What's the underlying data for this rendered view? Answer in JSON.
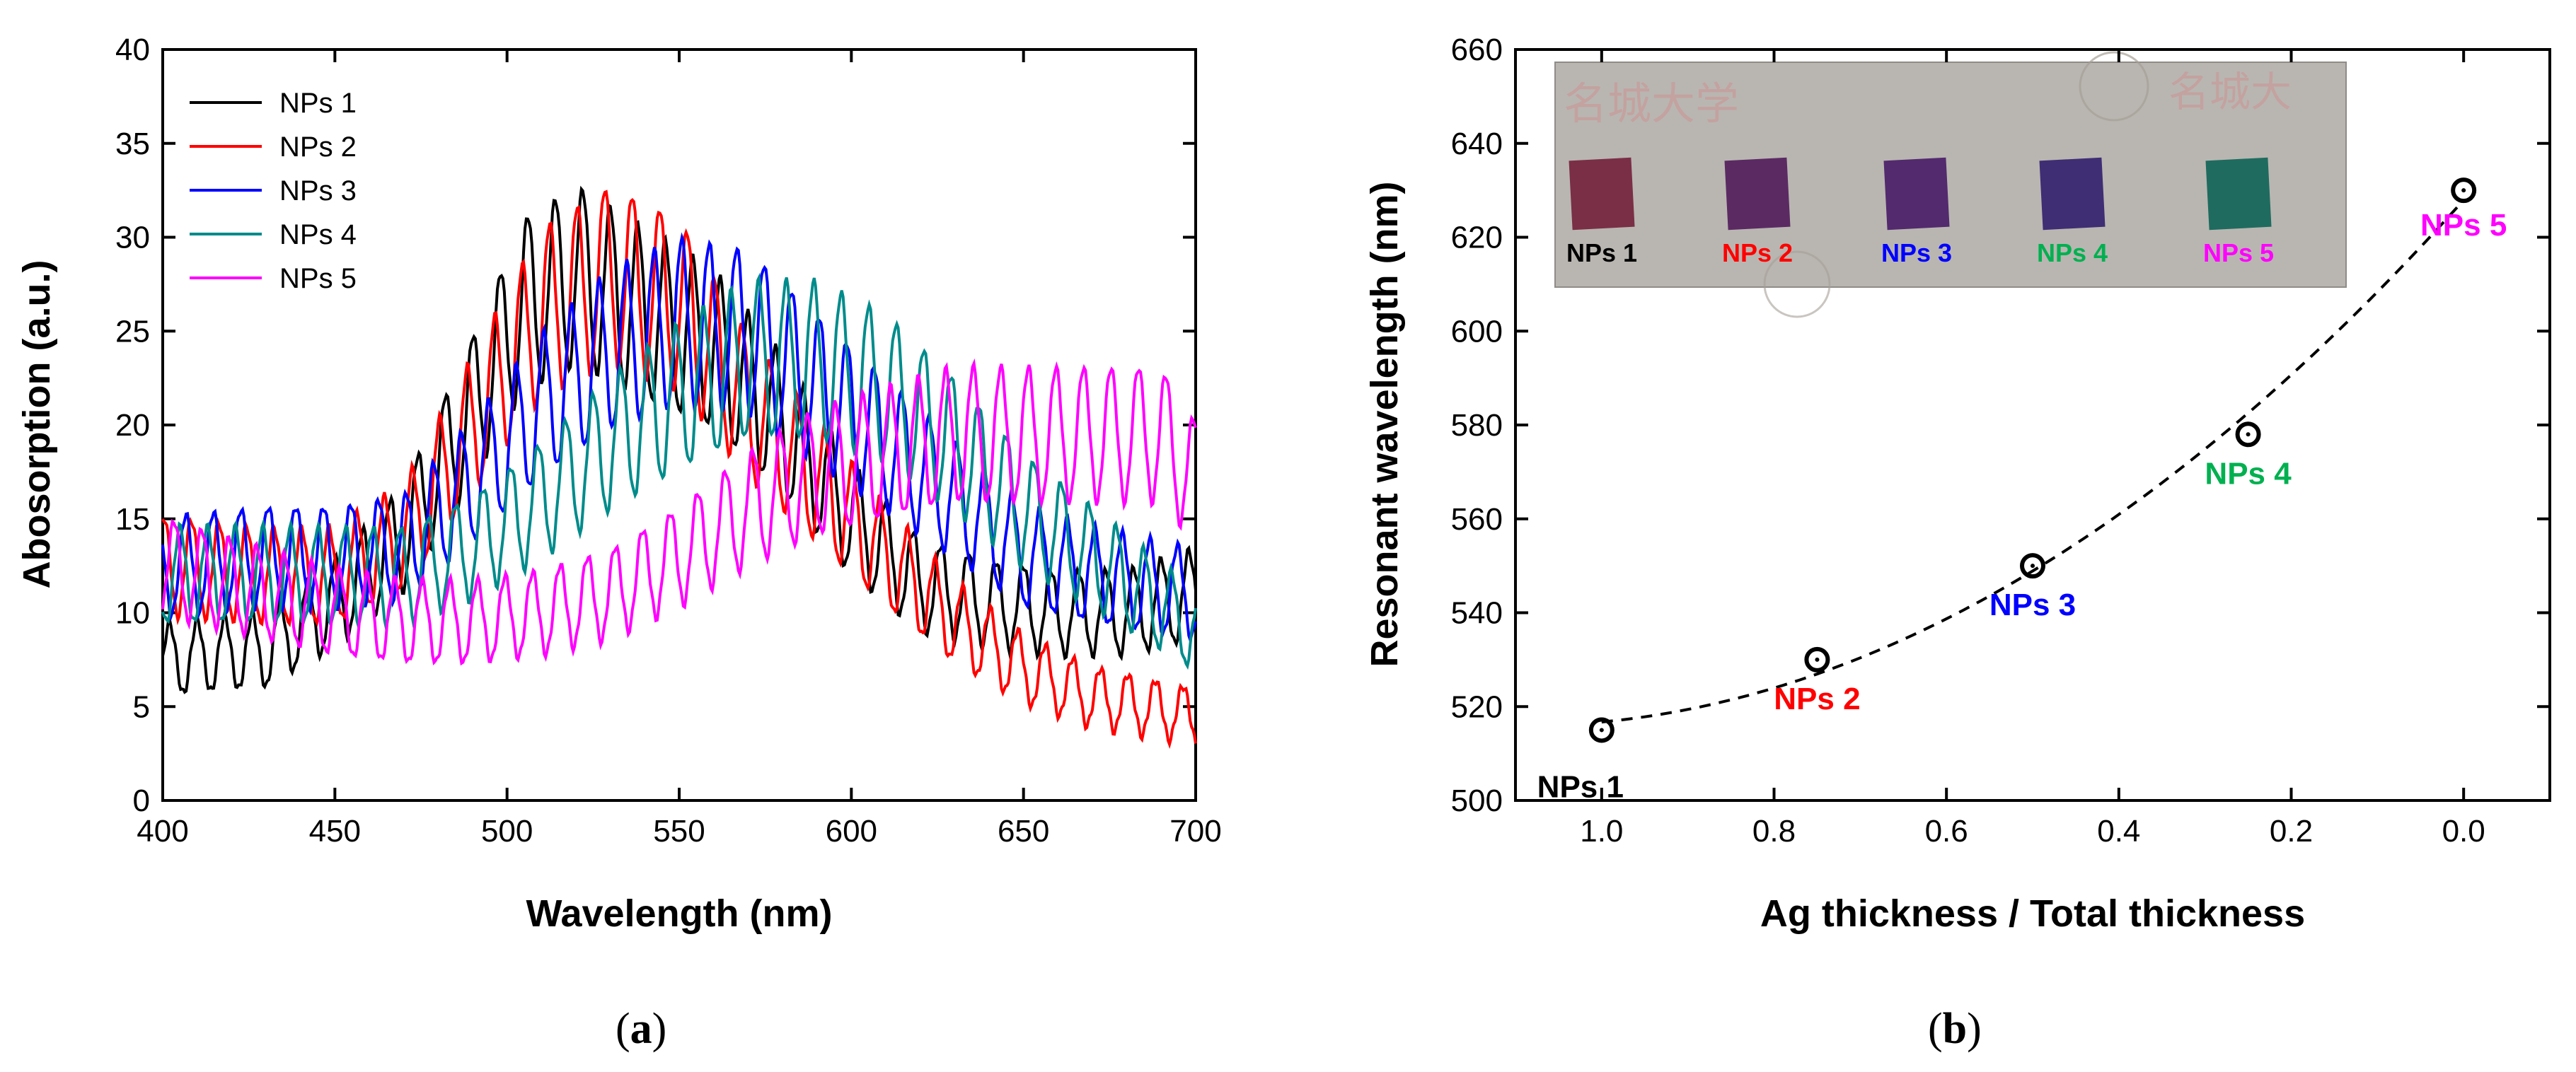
{
  "colors": {
    "NPs 1": "#000000",
    "NPs 2": "#ff0000",
    "NPs 3": "#0000ff",
    "NPs 4": "#008b8b",
    "NPs 5": "#ff00ff",
    "inset_label_NPs4": "#00b050"
  },
  "chart_data": [
    {
      "panel": "a",
      "type": "line",
      "xlabel": "Wavelength (nm)",
      "ylabel": "Abosorption (a.u.)",
      "xlim": [
        400,
        700
      ],
      "ylim": [
        0,
        40
      ],
      "xticks": [
        400,
        450,
        500,
        550,
        600,
        650,
        700
      ],
      "yticks": [
        0,
        5,
        10,
        15,
        20,
        25,
        30,
        35,
        40
      ],
      "legend_position": "top-left",
      "fringe_period_nm": 8,
      "series": [
        {
          "name": "NPs 1",
          "x": [
            400,
            430,
            450,
            470,
            490,
            505,
            520,
            540,
            560,
            580,
            600,
            620,
            640,
            660,
            680,
            700
          ],
          "y": [
            7.5,
            8,
            10.5,
            14,
            21,
            26.5,
            28,
            26,
            24,
            20,
            15,
            11.5,
            10.5,
            10,
            10,
            11
          ]
        },
        {
          "name": "NPs 2",
          "x": [
            400,
            430,
            450,
            470,
            490,
            510,
            530,
            550,
            570,
            590,
            610,
            630,
            650,
            670,
            700
          ],
          "y": [
            12.5,
            12,
            12,
            14,
            20,
            26,
            28,
            26.5,
            21,
            17,
            13,
            9.5,
            7,
            5.5,
            4.5
          ]
        },
        {
          "name": "NPs 3",
          "x": [
            400,
            430,
            450,
            470,
            490,
            510,
            530,
            550,
            570,
            590,
            610,
            630,
            650,
            670,
            700
          ],
          "y": [
            12.5,
            13,
            13,
            13.5,
            17,
            21,
            24,
            25.5,
            25,
            22,
            19,
            16,
            13,
            12,
            11
          ]
        },
        {
          "name": "NPs 4",
          "x": [
            400,
            430,
            450,
            470,
            490,
            510,
            530,
            550,
            570,
            590,
            610,
            630,
            650,
            670,
            700
          ],
          "y": [
            12,
            12,
            12,
            12,
            13.5,
            16,
            19,
            21.5,
            23.5,
            23.5,
            22,
            19,
            15.5,
            13,
            9
          ]
        },
        {
          "name": "NPs 5",
          "x": [
            400,
            430,
            450,
            470,
            490,
            510,
            530,
            550,
            570,
            590,
            610,
            630,
            650,
            670,
            690,
            700
          ],
          "y": [
            12.5,
            11,
            10,
            9.5,
            9.5,
            10,
            11,
            13,
            15.5,
            17.5,
            18.5,
            19.5,
            19.5,
            19.5,
            19.5,
            17
          ]
        }
      ]
    },
    {
      "panel": "b",
      "type": "scatter",
      "xlabel": "Ag thickness / Total thickness",
      "ylabel": "Resonant wavelength (nm)",
      "xlim": [
        1.1,
        -0.1
      ],
      "ylim": [
        500,
        660
      ],
      "xticks": [
        "1.0",
        "0.8",
        "0.6",
        "0.4",
        "0.2",
        "0.0"
      ],
      "yticks": [
        500,
        520,
        540,
        560,
        580,
        600,
        620,
        640,
        660
      ],
      "trendline": "dashed curve",
      "points": [
        {
          "name": "NPs 1",
          "x": 1.0,
          "y": 515
        },
        {
          "name": "NPs 2",
          "x": 0.75,
          "y": 530
        },
        {
          "name": "NPs 3",
          "x": 0.5,
          "y": 550
        },
        {
          "name": "NPs 4",
          "x": 0.25,
          "y": 578
        },
        {
          "name": "NPs 5",
          "x": 0.0,
          "y": 630
        }
      ],
      "inset": {
        "description_labels": [
          "NPs 1",
          "NPs 2",
          "NPs 3",
          "NPs 4",
          "NPs 5"
        ],
        "banner_text": "名城大学"
      }
    }
  ],
  "captions": {
    "a": "(a)",
    "b": "(b)"
  }
}
